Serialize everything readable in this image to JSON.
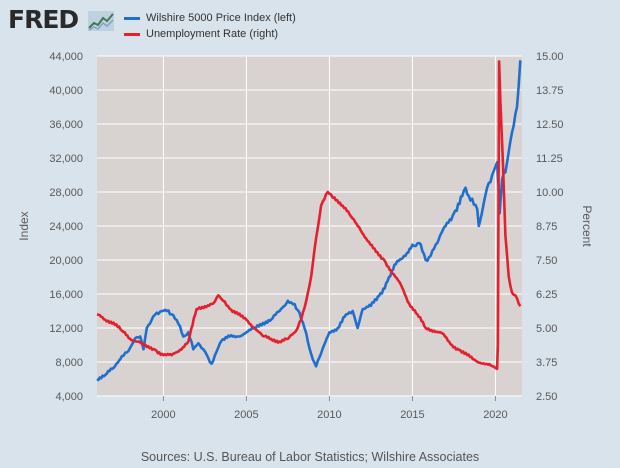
{
  "header": {
    "logo_text": "FRED",
    "logo_icon": "fred-line-chart-icon"
  },
  "legend": [
    {
      "label": "Wilshire 5000 Price Index (left)",
      "color": "#1f6fd1"
    },
    {
      "label": "Unemployment Rate (right)",
      "color": "#e4202f"
    }
  ],
  "source": "Sources: U.S. Bureau of Labor Statistics; Wilshire Associates",
  "chart_data": {
    "type": "line",
    "plot_background": "#d8d3d0",
    "grid": true,
    "x_axis": {
      "min": 1996.0,
      "max": 2021.6,
      "ticks": [
        2000,
        2005,
        2010,
        2015,
        2020
      ]
    },
    "y_left": {
      "label": "Index",
      "min": 4000,
      "max": 44000,
      "ticks": [
        "4,000",
        "8,000",
        "12,000",
        "16,000",
        "20,000",
        "24,000",
        "28,000",
        "32,000",
        "36,000",
        "40,000",
        "44,000"
      ]
    },
    "y_right": {
      "label": "Percent",
      "min": 2.5,
      "max": 15.0,
      "ticks": [
        "2.50",
        "3.75",
        "5.00",
        "6.25",
        "7.50",
        "8.75",
        "10.00",
        "11.25",
        "12.50",
        "13.75",
        "15.00"
      ]
    },
    "series": [
      {
        "name": "Wilshire 5000 Price Index (left)",
        "axis": "left",
        "color": "#1f6fd1",
        "x": [
          1996.0,
          1996.5,
          1997.0,
          1997.5,
          1997.9,
          1998.3,
          1998.6,
          1998.8,
          1999.0,
          1999.3,
          1999.6,
          1999.9,
          2000.2,
          2000.6,
          2000.9,
          2001.2,
          2001.5,
          2001.8,
          2002.1,
          2002.4,
          2002.7,
          2002.9,
          2003.2,
          2003.5,
          2004.0,
          2004.5,
          2005.0,
          2005.5,
          2006.0,
          2006.5,
          2007.0,
          2007.5,
          2007.8,
          2008.2,
          2008.5,
          2008.8,
          2009.0,
          2009.2,
          2009.5,
          2010.0,
          2010.5,
          2011.0,
          2011.4,
          2011.7,
          2012.0,
          2012.5,
          2013.0,
          2013.5,
          2014.0,
          2014.5,
          2015.0,
          2015.4,
          2015.8,
          2016.1,
          2016.5,
          2017.0,
          2017.5,
          2018.0,
          2018.2,
          2018.5,
          2018.9,
          2019.0,
          2019.5,
          2019.9,
          2020.1,
          2020.2,
          2020.25,
          2020.4,
          2020.7,
          2021.0,
          2021.3,
          2021.5
        ],
        "values": [
          6000,
          6500,
          7300,
          8700,
          9300,
          10800,
          11000,
          9500,
          12000,
          13000,
          13800,
          14000,
          14000,
          13500,
          12500,
          11000,
          11500,
          9500,
          10200,
          9500,
          8500,
          7800,
          9200,
          10500,
          11000,
          11000,
          11500,
          12000,
          12600,
          13000,
          14000,
          15200,
          14800,
          13800,
          12000,
          9600,
          8300,
          7500,
          9000,
          11500,
          12000,
          13600,
          14000,
          12000,
          14200,
          14600,
          15800,
          17500,
          19500,
          20500,
          21800,
          22000,
          20000,
          20500,
          22000,
          24000,
          25500,
          27500,
          28500,
          27000,
          26000,
          24000,
          28500,
          30500,
          31500,
          28000,
          25500,
          29500,
          31500,
          35000,
          38000,
          43500
        ]
      },
      {
        "name": "Unemployment Rate (right)",
        "axis": "right",
        "color": "#e4202f",
        "x": [
          1996.0,
          1996.5,
          1997.0,
          1997.5,
          1998.0,
          1998.5,
          1999.0,
          1999.5,
          2000.0,
          2000.5,
          2001.0,
          2001.5,
          2002.0,
          2002.5,
          2003.0,
          2003.3,
          2003.6,
          2004.0,
          2004.5,
          2005.0,
          2005.5,
          2006.0,
          2006.5,
          2007.0,
          2007.5,
          2008.0,
          2008.3,
          2008.6,
          2008.9,
          2009.2,
          2009.5,
          2009.9,
          2010.3,
          2010.8,
          2011.3,
          2011.8,
          2012.3,
          2012.8,
          2013.3,
          2013.8,
          2014.3,
          2014.8,
          2015.3,
          2015.8,
          2016.3,
          2016.8,
          2017.3,
          2017.8,
          2018.3,
          2018.8,
          2019.3,
          2019.8,
          2020.1,
          2020.15,
          2020.22,
          2020.3,
          2020.45,
          2020.6,
          2020.8,
          2021.0,
          2021.2,
          2021.4,
          2021.5
        ],
        "values": [
          5.5,
          5.3,
          5.2,
          4.9,
          4.6,
          4.5,
          4.3,
          4.2,
          4.0,
          4.0,
          4.2,
          4.5,
          5.7,
          5.8,
          5.9,
          6.2,
          6.0,
          5.7,
          5.5,
          5.3,
          5.0,
          4.7,
          4.6,
          4.5,
          4.6,
          4.9,
          5.3,
          6.0,
          6.9,
          8.3,
          9.5,
          10.0,
          9.8,
          9.5,
          9.1,
          8.7,
          8.2,
          7.8,
          7.5,
          7.0,
          6.6,
          5.9,
          5.5,
          5.0,
          4.9,
          4.8,
          4.4,
          4.2,
          4.0,
          3.8,
          3.7,
          3.6,
          3.5,
          4.4,
          14.8,
          13.3,
          11.1,
          8.4,
          6.9,
          6.3,
          6.2,
          5.9,
          5.8
        ]
      }
    ]
  }
}
